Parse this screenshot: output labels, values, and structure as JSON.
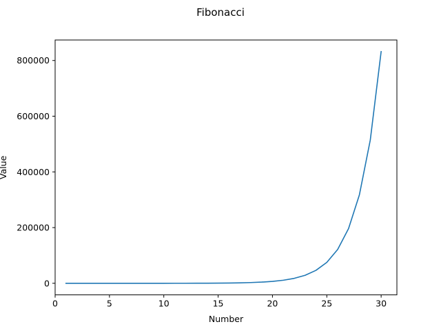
{
  "chart_data": {
    "type": "line",
    "title": "Fibonacci",
    "xlabel": "Number",
    "ylabel": "Value",
    "xlim": [
      0.0,
      31.45
    ],
    "ylim": [
      -41601,
      873620
    ],
    "x_ticks": [
      0,
      5,
      10,
      15,
      20,
      25,
      30
    ],
    "x_tick_labels": [
      "0",
      "5",
      "10",
      "15",
      "20",
      "25",
      "30"
    ],
    "y_ticks": [
      0,
      200000,
      400000,
      600000,
      800000
    ],
    "y_tick_labels": [
      "0",
      "200000",
      "400000",
      "600000",
      "800000"
    ],
    "grid": false,
    "legend": "none",
    "series": [
      {
        "color": "#1f77b4",
        "x": [
          1,
          2,
          3,
          4,
          5,
          6,
          7,
          8,
          9,
          10,
          11,
          12,
          13,
          14,
          15,
          16,
          17,
          18,
          19,
          20,
          21,
          22,
          23,
          24,
          25,
          26,
          27,
          28,
          29,
          30
        ],
        "y": [
          1,
          1,
          2,
          3,
          5,
          8,
          13,
          21,
          34,
          55,
          89,
          144,
          233,
          377,
          610,
          987,
          1597,
          2584,
          4181,
          6765,
          10946,
          17711,
          28657,
          46368,
          75025,
          121393,
          196418,
          317811,
          514229,
          832040
        ]
      }
    ]
  }
}
